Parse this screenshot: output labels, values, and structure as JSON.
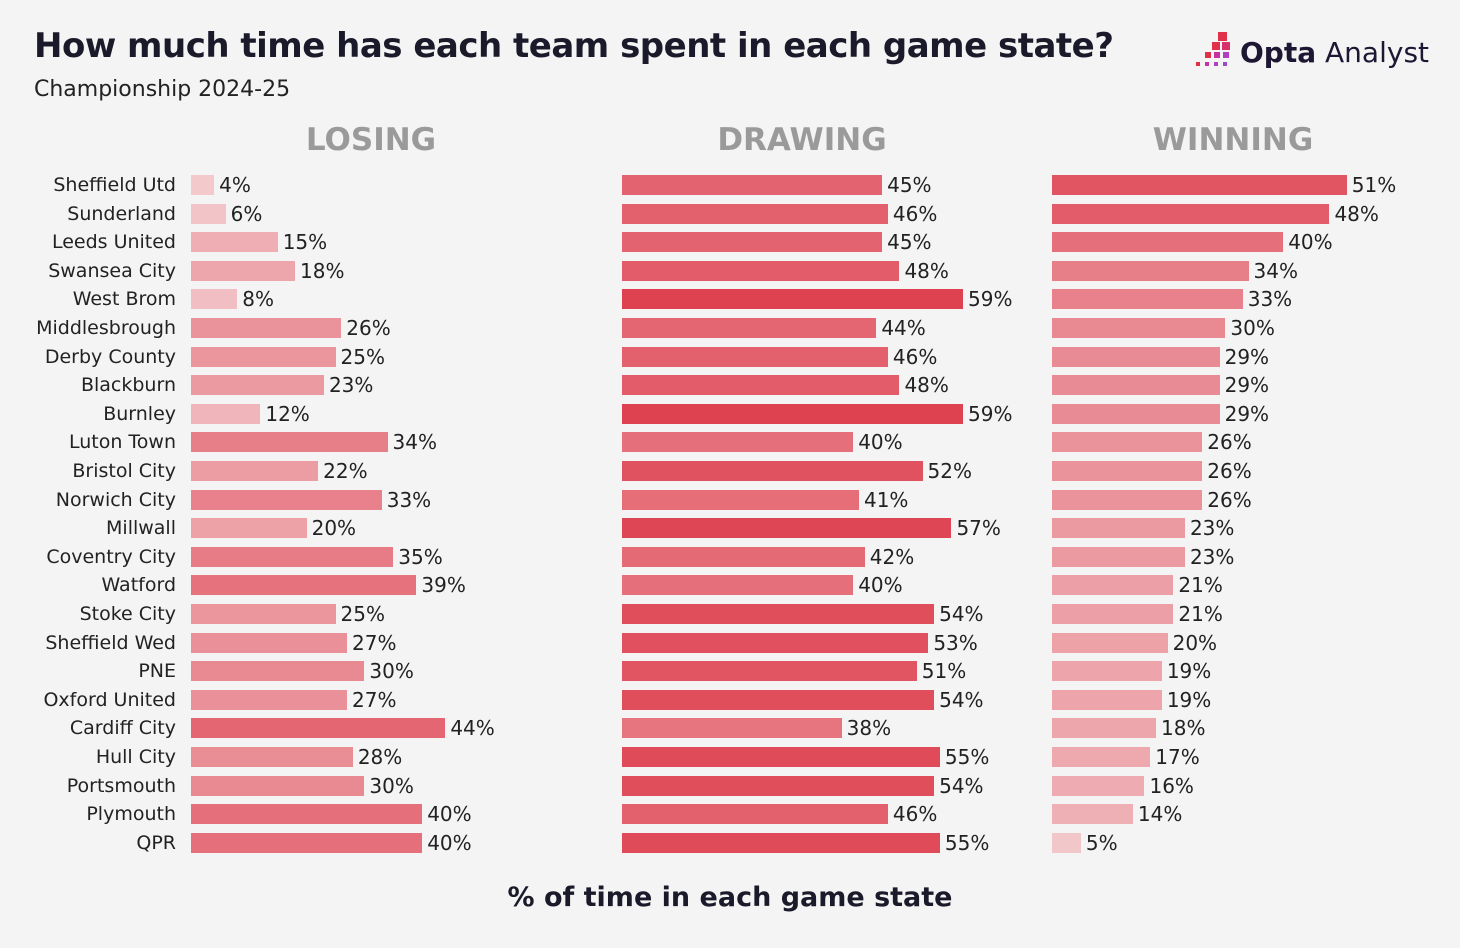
{
  "header": {
    "title": "How much time has each team spent in each game state?",
    "subtitle": "Championship 2024-25",
    "logo_bold": "Opta",
    "logo_light": "Analyst"
  },
  "colors": {
    "low": "#f4d3d5",
    "high": "#de4150",
    "background": "#f4f4f4"
  },
  "chart_data": {
    "type": "bar",
    "title": "How much time has each team spent in each game state?",
    "subtitle": "Championship 2024-25",
    "xlabel": "% of time in each game state",
    "ylabel": "",
    "xlim": [
      0,
      60
    ],
    "grid": false,
    "categories": [
      "Sheffield Utd",
      "Sunderland",
      "Leeds United",
      "Swansea City",
      "West Brom",
      "Middlesbrough",
      "Derby County",
      "Blackburn",
      "Burnley",
      "Luton Town",
      "Bristol City",
      "Norwich City",
      "Millwall",
      "Coventry City",
      "Watford",
      "Stoke City",
      "Sheffield Wed",
      "PNE",
      "Oxford United",
      "Cardiff City",
      "Hull City",
      "Portsmouth",
      "Plymouth",
      "QPR"
    ],
    "series": [
      {
        "name": "LOSING",
        "values": [
          4,
          6,
          15,
          18,
          8,
          26,
          25,
          23,
          12,
          34,
          22,
          33,
          20,
          35,
          39,
          25,
          27,
          30,
          27,
          44,
          28,
          30,
          40,
          40
        ]
      },
      {
        "name": "DRAWING",
        "values": [
          45,
          46,
          45,
          48,
          59,
          44,
          46,
          48,
          59,
          40,
          52,
          41,
          57,
          42,
          40,
          54,
          53,
          51,
          54,
          38,
          55,
          54,
          46,
          55
        ]
      },
      {
        "name": "WINNING",
        "values": [
          51,
          48,
          40,
          34,
          33,
          30,
          29,
          29,
          29,
          26,
          26,
          26,
          23,
          23,
          21,
          21,
          20,
          19,
          19,
          18,
          17,
          16,
          14,
          5
        ]
      }
    ]
  }
}
